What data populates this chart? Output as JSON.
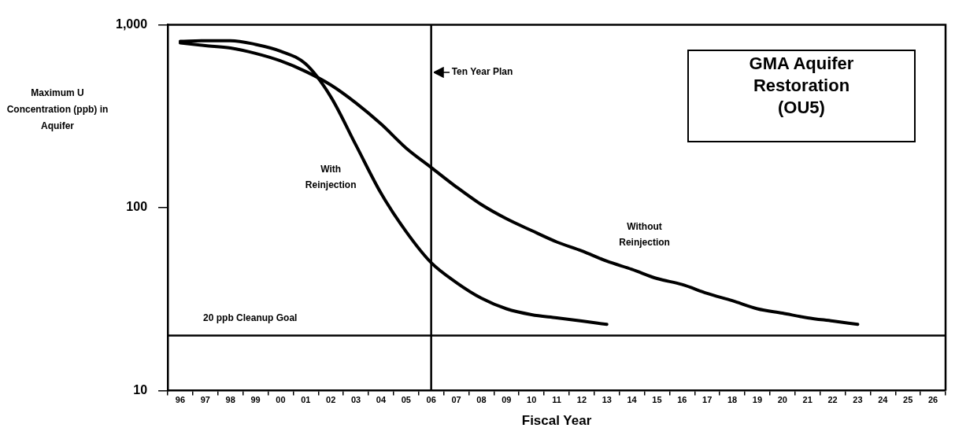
{
  "chart_data": {
    "type": "line",
    "title": "GMA Aquifer Restoration (OU5)",
    "xlabel": "Fiscal Year",
    "ylabel": "Maximum U Concentration (ppb) in Aquifer",
    "categories": [
      "96",
      "97",
      "98",
      "99",
      "00",
      "01",
      "02",
      "03",
      "04",
      "05",
      "06",
      "07",
      "08",
      "09",
      "10",
      "11",
      "12",
      "13",
      "14",
      "15",
      "16",
      "17",
      "18",
      "19",
      "20",
      "21",
      "22",
      "23",
      "24",
      "25",
      "26"
    ],
    "series": [
      {
        "name": "With Reinjection",
        "color": "#000000",
        "values": [
          813,
          820,
          820,
          782,
          718,
          611,
          404,
          220,
          120,
          74,
          50,
          39,
          32,
          28,
          26,
          25,
          24,
          23,
          null,
          null,
          null,
          null,
          null,
          null,
          null,
          null,
          null,
          null,
          null,
          null,
          null
        ]
      },
      {
        "name": "Without Reinjection",
        "color": "#000000",
        "values": [
          796,
          770,
          747,
          698,
          635,
          556,
          469,
          374,
          287,
          212,
          166,
          130,
          104,
          87,
          75,
          65,
          58,
          51,
          46,
          41,
          38,
          34,
          31,
          28,
          26.5,
          25,
          24,
          23,
          null,
          null,
          null
        ]
      }
    ],
    "log": "y",
    "ylim": [
      10,
      1000
    ],
    "yticks": [
      10,
      100,
      {
        "value": 1000,
        "label": "1,000"
      }
    ],
    "grid": false,
    "legend": false,
    "marker": "none",
    "line_style": "solid",
    "ref_lines": [
      {
        "axis": "x",
        "value": "06",
        "label": "Ten Year Plan",
        "color": "#000000"
      },
      {
        "axis": "y",
        "value": 20,
        "label": "20 ppb Cleanup Goal",
        "color": "#000000"
      }
    ]
  }
}
